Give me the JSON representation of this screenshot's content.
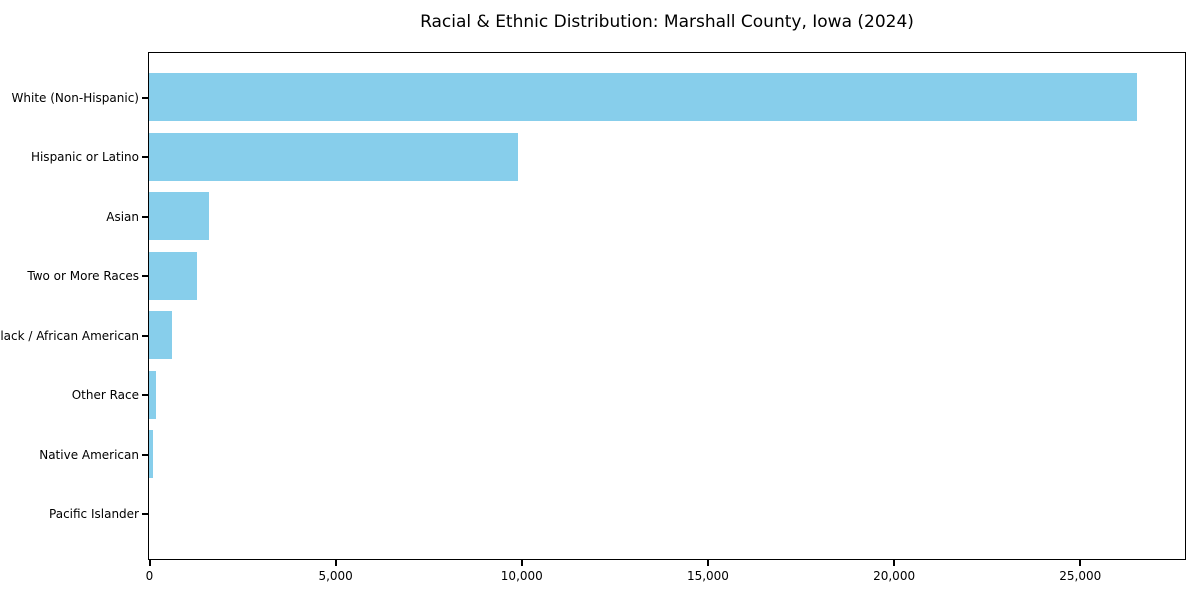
{
  "title": "Racial & Ethnic Distribution: Marshall County, Iowa (2024)",
  "colors": {
    "bar": "#87CEEB",
    "axis": "#000000",
    "text": "#000000",
    "background": "#ffffff"
  },
  "chart_data": {
    "type": "bar",
    "orientation": "horizontal",
    "title": "Racial & Ethnic Distribution: Marshall County, Iowa (2024)",
    "categories": [
      "White (Non-Hispanic)",
      "Hispanic or Latino",
      "Asian",
      "Two or More Races",
      "Black / African American",
      "Other Race",
      "Native American",
      "Pacific Islander"
    ],
    "values": [
      26500,
      9900,
      1600,
      1300,
      630,
      180,
      110,
      0
    ],
    "xlabel": "",
    "ylabel": "",
    "xlim": [
      0,
      27800
    ],
    "xticks": [
      0,
      5000,
      10000,
      15000,
      20000,
      25000
    ],
    "xtick_labels": [
      "0",
      "5,000",
      "10,000",
      "15,000",
      "20,000",
      "25,000"
    ],
    "grid": false,
    "legend": null,
    "bar_color": "#87CEEB"
  }
}
